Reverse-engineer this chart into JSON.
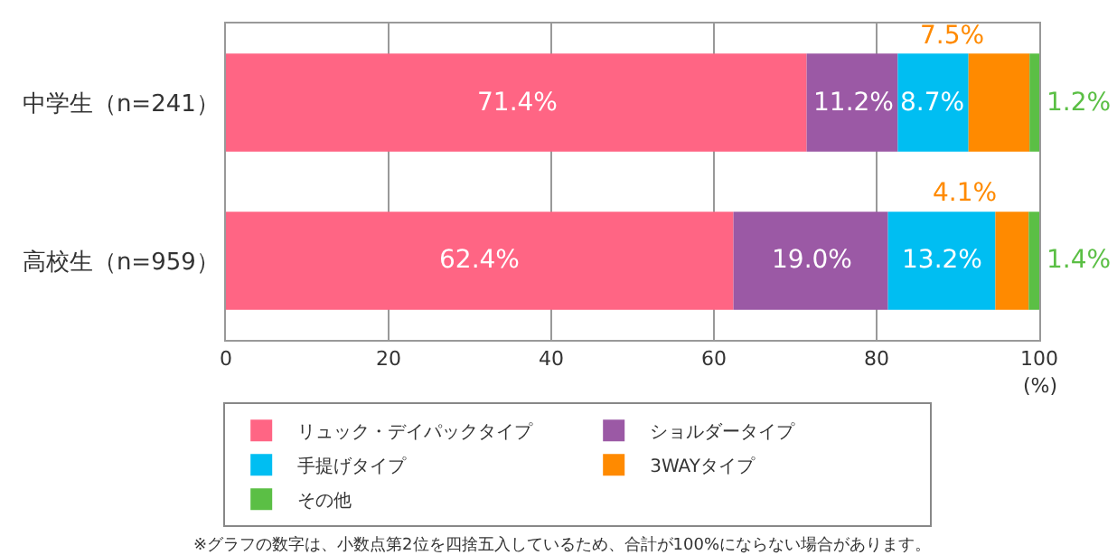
{
  "chart_data": {
    "type": "bar",
    "orientation": "horizontal",
    "stacked": true,
    "categories": [
      "中学生（n=241）",
      "高校生（n=959）"
    ],
    "series": [
      {
        "name": "リュック・デイパックタイプ",
        "color": "#ff6584",
        "values": [
          71.4,
          62.4
        ],
        "value_labels": [
          "71.4%",
          "62.4%"
        ]
      },
      {
        "name": "ショルダータイプ",
        "color": "#9b59a5",
        "values": [
          11.2,
          19.0
        ],
        "value_labels": [
          "11.2%",
          "19.0%"
        ]
      },
      {
        "name": "手提げタイプ",
        "color": "#00bef2",
        "values": [
          8.7,
          13.2
        ],
        "value_labels": [
          "8.7%",
          "13.2%"
        ]
      },
      {
        "name": "3WAYタイプ",
        "color": "#ff8a00",
        "values": [
          7.5,
          4.1
        ],
        "value_labels": [
          "7.5%",
          "4.1%"
        ]
      },
      {
        "name": "その他",
        "color": "#5bbf45",
        "values": [
          1.2,
          1.4
        ],
        "value_labels": [
          "1.2%",
          "1.4%"
        ]
      }
    ],
    "xlim": [
      0,
      100
    ],
    "xticks": [
      0,
      20,
      40,
      60,
      80,
      100
    ],
    "xlabel": "(%)",
    "grid": "x",
    "legend": "bottom",
    "annotations": [
      "※グラフの数字は、小数点第2位を四捨五入しているため、合計が100%にならない場合があります。"
    ]
  }
}
